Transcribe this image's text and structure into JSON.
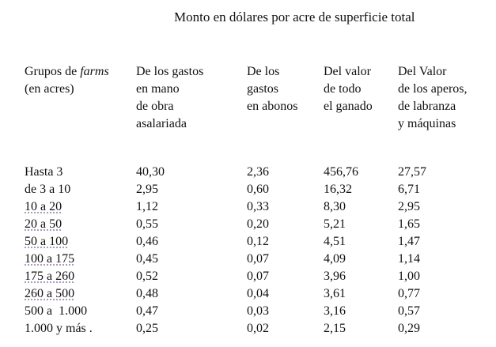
{
  "title": "Monto en dólares por acre de superficie total",
  "headers": [
    [
      "Grupos de farms",
      "(en acres)"
    ],
    [
      "De los gastos",
      "en mano",
      "de obra",
      "asalariada"
    ],
    [
      "De los",
      "gastos",
      "en abonos"
    ],
    [
      "Del valor",
      "de todo",
      "el ganado"
    ],
    [
      "Del Valor",
      "de los aperos,",
      "de labranza",
      "y máquinas"
    ]
  ],
  "header0_parts": {
    "before": "Grupos de ",
    "italic": "farms"
  },
  "rows": [
    [
      "Hasta 3",
      "40,30",
      "2,36",
      "456,76",
      "27,57"
    ],
    [
      "de 3 a 10",
      "2,95",
      "0,60",
      "16,32",
      "6,71"
    ],
    [
      "10 a 20",
      "1,12",
      "0,33",
      "8,30",
      "2,95"
    ],
    [
      "20 a 50",
      "0,55",
      "0,20",
      "5,21",
      "1,65"
    ],
    [
      "50 a 100",
      "0,46",
      "0,12",
      "4,51",
      "1,47"
    ],
    [
      "100 a 175",
      "0,45",
      "0,07",
      "4,09",
      "1,14"
    ],
    [
      "175 a 260",
      "0,52",
      "0,07",
      "3,96",
      "1,00"
    ],
    [
      "260 a 500",
      "0,48",
      "0,04",
      "3,61",
      "0,77"
    ],
    [
      "500 a  1.000",
      "0,47",
      "0,03",
      "3,16",
      "0,57"
    ],
    [
      "1.000 y más .",
      "0,25",
      "0,02",
      "2,15",
      "0,29"
    ]
  ]
}
